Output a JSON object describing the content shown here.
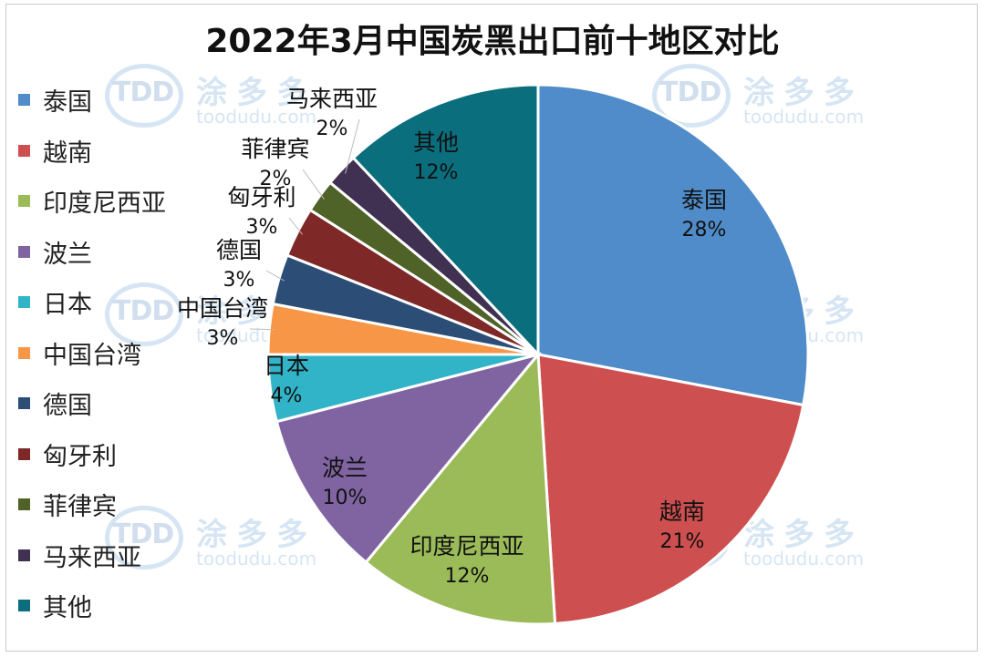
{
  "chart_data": {
    "type": "pie",
    "title": "2022年3月中国炭黑出口前十地区对比",
    "slices": [
      {
        "label": "泰国",
        "value": 28,
        "value_label": "28%",
        "color": "#4f8cc9"
      },
      {
        "label": "越南",
        "value": 21,
        "value_label": "21%",
        "color": "#ce4f4f"
      },
      {
        "label": "印度尼西亚",
        "value": 12,
        "value_label": "12%",
        "color": "#9bbb59"
      },
      {
        "label": "波兰",
        "value": 10,
        "value_label": "10%",
        "color": "#8064a2"
      },
      {
        "label": "日本",
        "value": 4,
        "value_label": "4%",
        "color": "#31b3c8"
      },
      {
        "label": "中国台湾",
        "value": 3,
        "value_label": "3%",
        "color": "#f79646"
      },
      {
        "label": "德国",
        "value": 3,
        "value_label": "3%",
        "color": "#2c4d75"
      },
      {
        "label": "匈牙利",
        "value": 3,
        "value_label": "3%",
        "color": "#7f2828"
      },
      {
        "label": "菲律宾",
        "value": 2,
        "value_label": "2%",
        "color": "#4f6228"
      },
      {
        "label": "马来西亚",
        "value": 2,
        "value_label": "2%",
        "color": "#403152"
      },
      {
        "label": "其他",
        "value": 12,
        "value_label": "12%",
        "color": "#0a6e7d"
      }
    ],
    "legend_position": "left"
  },
  "watermark": {
    "brand": "TDD",
    "name_cn": "涂多多",
    "url": "toodudu.com"
  }
}
